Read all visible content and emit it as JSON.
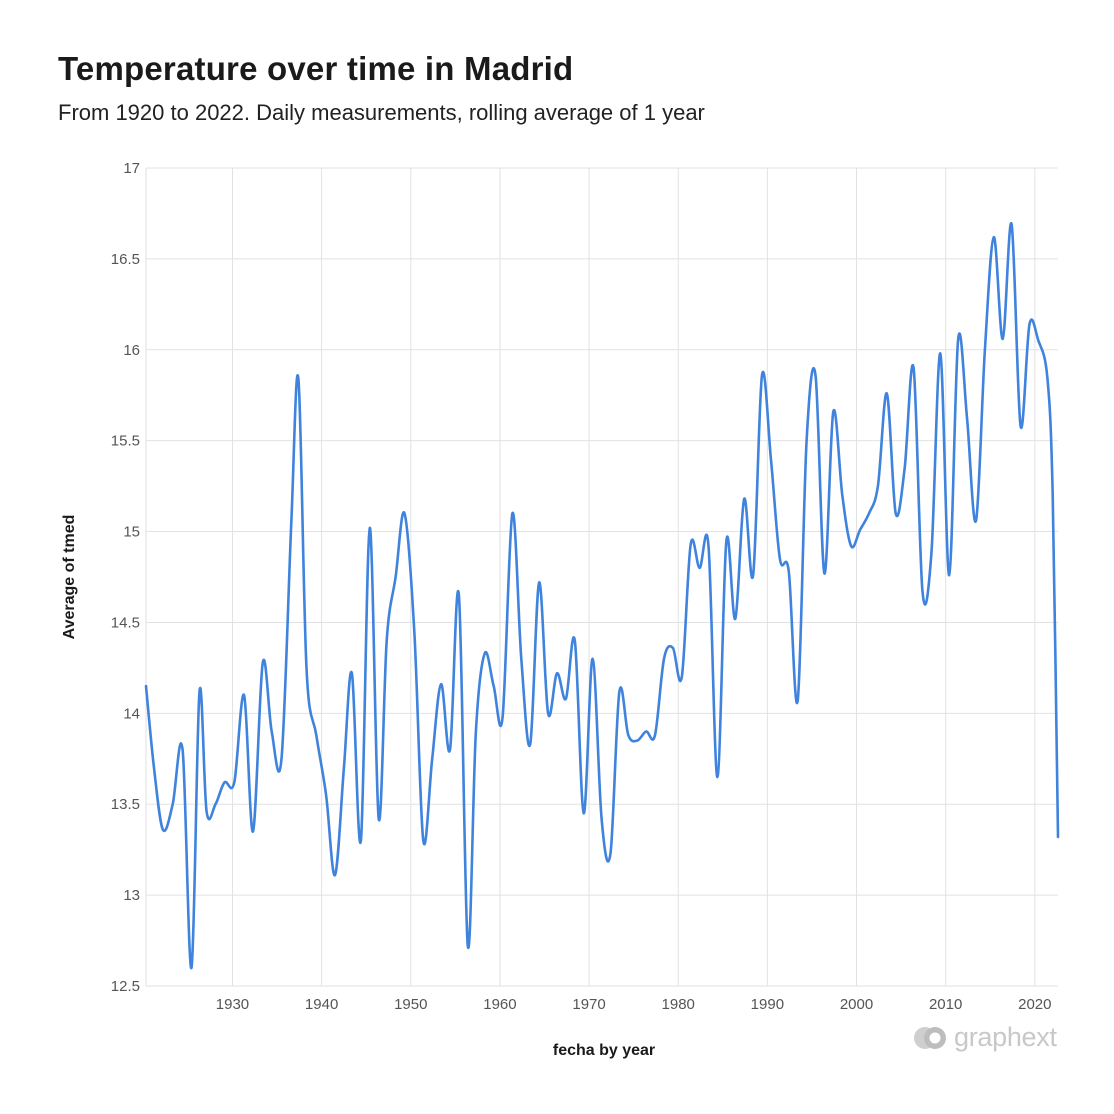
{
  "header": {
    "title": "Temperature over time in Madrid",
    "subtitle": "From 1920 to 2022. Daily measurements, rolling average of 1 year"
  },
  "brand": {
    "name": "graphext"
  },
  "colors": {
    "line": "#3f83dd",
    "grid": "#e2e2e2",
    "logo": "#c8c8c8"
  },
  "chart_data": {
    "type": "line",
    "title": "Temperature over time in Madrid",
    "subtitle": "From 1920 to 2022. Daily measurements, rolling average of 1 year",
    "xlabel": "fecha by year",
    "ylabel": "Average of tmed",
    "xlim": [
      1920.3,
      2022.6
    ],
    "ylim": [
      12.5,
      17
    ],
    "x_ticks": [
      1930,
      1940,
      1950,
      1960,
      1970,
      1980,
      1990,
      2000,
      2010,
      2020
    ],
    "y_ticks": [
      12.5,
      13,
      13.5,
      14,
      14.5,
      15,
      15.5,
      16,
      16.5,
      17
    ],
    "grid": true,
    "series": [
      {
        "x": [
          1920.3,
          1921.2,
          1922.2,
          1923.3,
          1924.4,
          1925.4,
          1926.3,
          1927.1,
          1928.1,
          1929.1,
          1930.2,
          1931.3,
          1932.3,
          1933.4,
          1934.4,
          1935.5,
          1936.6,
          1937.4,
          1938.3,
          1939.4,
          1940.5,
          1941.5,
          1942.5,
          1943.4,
          1944.4,
          1945.4,
          1946.4,
          1947.3,
          1948.3,
          1949.3,
          1950.4,
          1951.4,
          1952.4,
          1953.4,
          1954.4,
          1955.4,
          1956.4,
          1957.3,
          1958.3,
          1959.3,
          1960.3,
          1961.4,
          1962.4,
          1963.4,
          1964.4,
          1965.4,
          1966.4,
          1967.4,
          1968.4,
          1969.4,
          1970.4,
          1971.4,
          1972.4,
          1973.4,
          1974.4,
          1975.4,
          1976.4,
          1977.4,
          1978.4,
          1979.4,
          1980.4,
          1981.4,
          1982.4,
          1983.4,
          1984.4,
          1985.4,
          1986.4,
          1987.4,
          1988.4,
          1989.4,
          1990.4,
          1991.4,
          1992.4,
          1993.4,
          1994.4,
          1995.4,
          1996.4,
          1997.4,
          1998.4,
          1999.4,
          2000.4,
          2001.4,
          2002.4,
          2003.4,
          2004.4,
          2005.4,
          2006.4,
          2007.4,
          2008.4,
          2009.4,
          2010.4,
          2011.4,
          2012.4,
          2013.4,
          2014.4,
          2015.4,
          2016.4,
          2017.4,
          2018.4,
          2019.4,
          2020.4,
          2021.4,
          2022.0,
          2022.6
        ],
        "values": [
          14.15,
          13.7,
          13.36,
          13.5,
          13.8,
          12.6,
          14.12,
          13.46,
          13.5,
          13.62,
          13.62,
          14.1,
          13.35,
          14.28,
          13.9,
          13.75,
          15.05,
          15.84,
          14.25,
          13.88,
          13.55,
          13.11,
          13.7,
          14.22,
          13.3,
          15.02,
          13.42,
          14.4,
          14.75,
          15.1,
          14.45,
          13.3,
          13.75,
          14.16,
          13.8,
          14.65,
          12.72,
          13.9,
          14.33,
          14.15,
          13.98,
          15.1,
          14.3,
          13.83,
          14.72,
          14.0,
          14.22,
          14.08,
          14.4,
          13.45,
          14.3,
          13.42,
          13.23,
          14.12,
          13.88,
          13.85,
          13.9,
          13.88,
          14.3,
          14.36,
          14.2,
          14.93,
          14.8,
          14.92,
          13.65,
          14.95,
          14.52,
          15.18,
          14.76,
          15.86,
          15.4,
          14.85,
          14.78,
          14.07,
          15.5,
          15.86,
          14.77,
          15.66,
          15.2,
          14.92,
          15.01,
          15.1,
          15.25,
          15.76,
          15.1,
          15.35,
          15.9,
          14.67,
          14.88,
          15.98,
          14.76,
          16.06,
          15.62,
          15.06,
          16.0,
          16.62,
          16.06,
          16.69,
          15.58,
          16.14,
          16.05,
          15.85,
          15.2,
          13.32
        ]
      }
    ]
  }
}
